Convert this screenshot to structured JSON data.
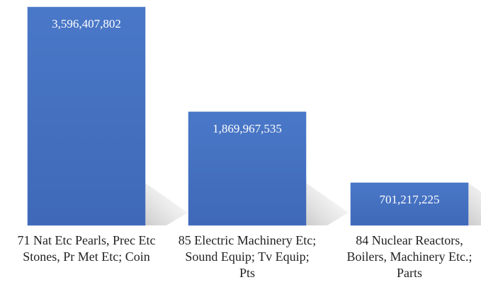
{
  "chart_data": {
    "type": "bar",
    "categories": [
      "71 Nat Etc Pearls, Prec Etc Stones, Pr Met Etc; Coin",
      "85 Electric Machinery Etc; Sound Equip; Tv Equip; Pts",
      "84 Nuclear Reactors, Boilers, Machinery Etc.; Parts"
    ],
    "values": [
      3596407802,
      1869967535,
      701217225
    ],
    "value_labels": [
      "3,596,407,802",
      "1,869,967,535",
      "701,217,225"
    ],
    "color": "#4472c4",
    "ylim": [
      0,
      3596407802
    ]
  }
}
